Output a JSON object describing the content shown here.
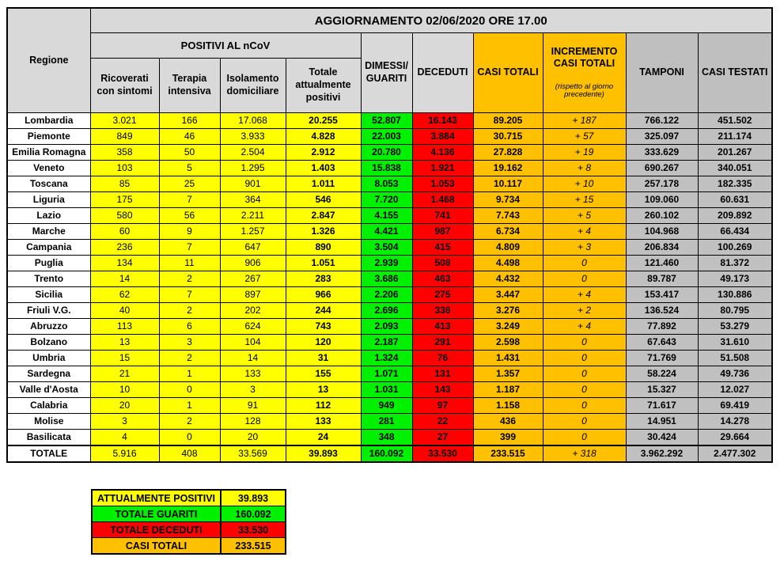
{
  "title": "AGGIORNAMENTO 02/06/2020 ORE 17.00",
  "colors": {
    "yellow": "#FFFF00",
    "green": "#00F000",
    "red": "#FF0000",
    "orange": "#FFC000",
    "header-light": "#D9D9D9",
    "header-dark": "#BFBFBF",
    "cell-grey": "#C0C0C0"
  },
  "header": {
    "regione": "Regione",
    "positivi_group": "POSITIVI AL nCoV",
    "ricoverati": "Ricoverati\ncon sintomi",
    "terapia": "Terapia\nintensiva",
    "isolamento": "Isolamento\ndomiciliare",
    "totale_positivi": "Totale\nattualmente\npositivi",
    "dimessi": "DIMESSI/\nGUARITI",
    "deceduti": "DECEDUTI",
    "casi_totali": "CASI TOTALI",
    "incremento_main": "INCREMENTO\nCASI TOTALI",
    "incremento_note": "(rispetto al giorno\nprecedente)",
    "tamponi": "TAMPONI",
    "casi_testati": "CASI TESTATI"
  },
  "chart_data": {
    "type": "table",
    "title": "AGGIORNAMENTO 02/06/2020 ORE 17.00",
    "columns": [
      "Regione",
      "Ricoverati con sintomi",
      "Terapia intensiva",
      "Isolamento domiciliare",
      "Totale attualmente positivi",
      "Dimessi/Guariti",
      "Deceduti",
      "Casi totali",
      "Incremento casi totali (rispetto al giorno precedente)",
      "Tamponi",
      "Casi testati"
    ],
    "rows": [
      [
        "Lombardia",
        "3.021",
        "166",
        "17.068",
        "20.255",
        "52.807",
        "16.143",
        "89.205",
        "+ 187",
        "766.122",
        "451.502"
      ],
      [
        "Piemonte",
        "849",
        "46",
        "3.933",
        "4.828",
        "22.003",
        "3.884",
        "30.715",
        "+ 57",
        "325.097",
        "211.174"
      ],
      [
        "Emilia Romagna",
        "358",
        "50",
        "2.504",
        "2.912",
        "20.780",
        "4.136",
        "27.828",
        "+ 19",
        "333.629",
        "201.267"
      ],
      [
        "Veneto",
        "103",
        "5",
        "1.295",
        "1.403",
        "15.838",
        "1.921",
        "19.162",
        "+ 8",
        "690.267",
        "340.051"
      ],
      [
        "Toscana",
        "85",
        "25",
        "901",
        "1.011",
        "8.053",
        "1.053",
        "10.117",
        "+ 10",
        "257.178",
        "182.335"
      ],
      [
        "Liguria",
        "175",
        "7",
        "364",
        "546",
        "7.720",
        "1.468",
        "9.734",
        "+ 15",
        "109.060",
        "60.631"
      ],
      [
        "Lazio",
        "580",
        "56",
        "2.211",
        "2.847",
        "4.155",
        "741",
        "7.743",
        "+ 5",
        "260.102",
        "209.892"
      ],
      [
        "Marche",
        "60",
        "9",
        "1.257",
        "1.326",
        "4.421",
        "987",
        "6.734",
        "+ 4",
        "104.968",
        "66.434"
      ],
      [
        "Campania",
        "236",
        "7",
        "647",
        "890",
        "3.504",
        "415",
        "4.809",
        "+ 3",
        "206.834",
        "100.269"
      ],
      [
        "Puglia",
        "134",
        "11",
        "906",
        "1.051",
        "2.939",
        "508",
        "4.498",
        "0",
        "121.460",
        "81.372"
      ],
      [
        "Trento",
        "14",
        "2",
        "267",
        "283",
        "3.686",
        "463",
        "4.432",
        "0",
        "89.787",
        "49.173"
      ],
      [
        "Sicilia",
        "62",
        "7",
        "897",
        "966",
        "2.206",
        "275",
        "3.447",
        "+ 4",
        "153.417",
        "130.886"
      ],
      [
        "Friuli V.G.",
        "40",
        "2",
        "202",
        "244",
        "2.696",
        "336",
        "3.276",
        "+ 2",
        "136.524",
        "80.795"
      ],
      [
        "Abruzzo",
        "113",
        "6",
        "624",
        "743",
        "2.093",
        "413",
        "3.249",
        "+ 4",
        "77.892",
        "53.279"
      ],
      [
        "Bolzano",
        "13",
        "3",
        "104",
        "120",
        "2.187",
        "291",
        "2.598",
        "0",
        "67.643",
        "31.610"
      ],
      [
        "Umbria",
        "15",
        "2",
        "14",
        "31",
        "1.324",
        "76",
        "1.431",
        "0",
        "71.769",
        "51.508"
      ],
      [
        "Sardegna",
        "21",
        "1",
        "133",
        "155",
        "1.071",
        "131",
        "1.357",
        "0",
        "58.224",
        "49.736"
      ],
      [
        "Valle d'Aosta",
        "10",
        "0",
        "3",
        "13",
        "1.031",
        "143",
        "1.187",
        "0",
        "15.327",
        "12.027"
      ],
      [
        "Calabria",
        "20",
        "1",
        "91",
        "112",
        "949",
        "97",
        "1.158",
        "0",
        "71.617",
        "69.419"
      ],
      [
        "Molise",
        "3",
        "2",
        "128",
        "133",
        "281",
        "22",
        "436",
        "0",
        "14.951",
        "14.278"
      ],
      [
        "Basilicata",
        "4",
        "0",
        "20",
        "24",
        "348",
        "27",
        "399",
        "0",
        "30.424",
        "29.664"
      ]
    ],
    "totale": [
      "TOTALE",
      "5.916",
      "408",
      "33.569",
      "39.893",
      "160.092",
      "33.530",
      "233.515",
      "+ 318",
      "3.962.292",
      "2.477.302"
    ]
  },
  "legend": {
    "items": [
      {
        "label": "ATTUALMENTE POSITIVI",
        "value": "39.893",
        "color": "yellow"
      },
      {
        "label": "TOTALE GUARITI",
        "value": "160.092",
        "color": "green"
      },
      {
        "label": "TOTALE DECEDUTI",
        "value": "33.530",
        "color": "red"
      },
      {
        "label": "CASI TOTALI",
        "value": "233.515",
        "color": "orange"
      }
    ]
  }
}
